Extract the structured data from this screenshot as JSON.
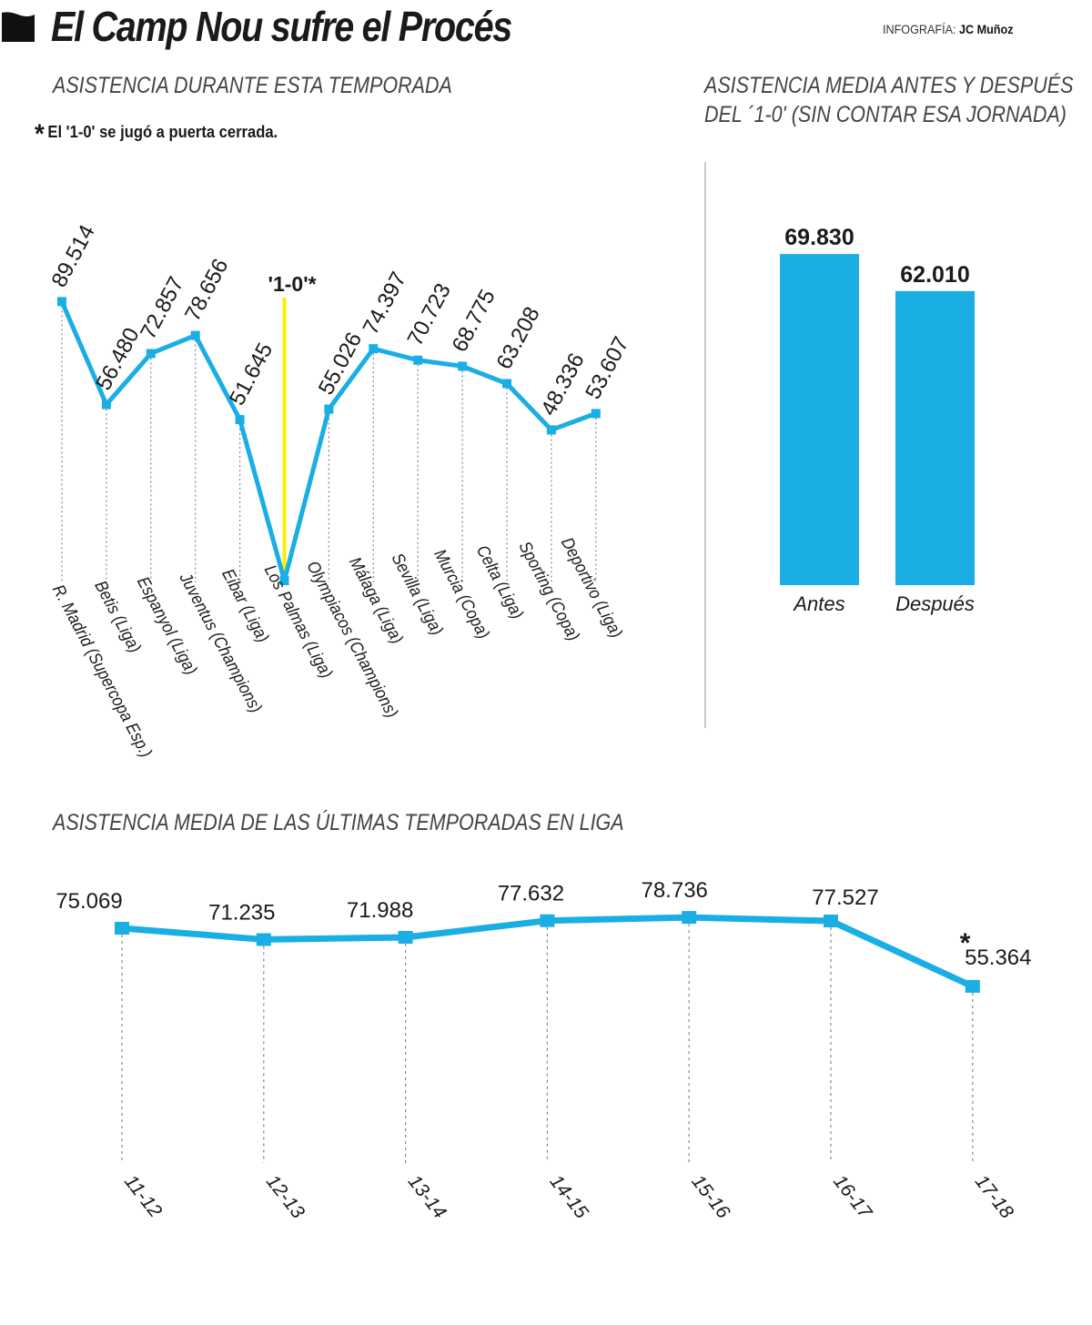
{
  "header": {
    "title": "El Camp Nou sufre el Procés",
    "credit_label": "INFOGRAFÍA:",
    "credit_author": "JC Muñoz"
  },
  "colors": {
    "accent": "#1aaee5",
    "marker": "#ffee00",
    "text": "#1a1a1a",
    "grid": "#888888"
  },
  "note": {
    "star": "*",
    "text": "El '1-0' se jugó a puerta cerrada."
  },
  "chart_data": [
    {
      "type": "line",
      "title": "ASISTENCIA DURANTE ESTA TEMPORADA",
      "categories": [
        "R. Madrid (Supercopa Esp.)",
        "Betis (Liga)",
        "Espanyol (Liga)",
        "Juventus (Champions)",
        "Eibar (Liga)",
        "Los Palmas (Liga)",
        "Olympiacos (Champions)",
        "Málaga (Liga)",
        "Sevilla (Liga)",
        "Murcia (Copa)",
        "Celta (Liga)",
        "Sporting (Copa)",
        "Deportivo (Liga)"
      ],
      "values": [
        89514,
        56480,
        72857,
        78656,
        51645,
        0,
        55026,
        74397,
        70723,
        68775,
        63208,
        48336,
        53607
      ],
      "labels": [
        "89.514",
        "56.480",
        "72.857",
        "78.656",
        "51.645",
        "",
        "55.026",
        "74.397",
        "70.723",
        "68.775",
        "63.208",
        "48.336",
        "53.607"
      ],
      "annotation": {
        "index": 5,
        "text": "'1-0'*"
      },
      "grid": false,
      "legend": "none"
    },
    {
      "type": "bar",
      "title": "ASISTENCIA MEDIA ANTES Y DESPUÉS DEL '1-0' (SIN CONTAR ESA JORNADA)",
      "title_lines": [
        "ASISTENCIA MEDIA ANTES Y DESPUÉS",
        "DEL ´1-0' (SIN CONTAR ESA JORNADA)"
      ],
      "categories": [
        "Antes",
        "Después"
      ],
      "values": [
        69830,
        62010
      ],
      "labels": [
        "69.830",
        "62.010"
      ],
      "ylim": [
        0,
        71000
      ]
    },
    {
      "type": "line",
      "title": "ASISTENCIA MEDIA DE LAS ÚLTIMAS TEMPORADAS EN LIGA",
      "categories": [
        "11-12",
        "12-13",
        "13-14",
        "14-15",
        "15-16",
        "16-17",
        "17-18"
      ],
      "values": [
        75069,
        71235,
        71988,
        77632,
        78736,
        77527,
        55364
      ],
      "labels": [
        "75.069",
        "71.235",
        "71.988",
        "77.632",
        "78.736",
        "77.527",
        "55.364"
      ],
      "annotation": {
        "index": 6,
        "text": "*"
      }
    }
  ]
}
